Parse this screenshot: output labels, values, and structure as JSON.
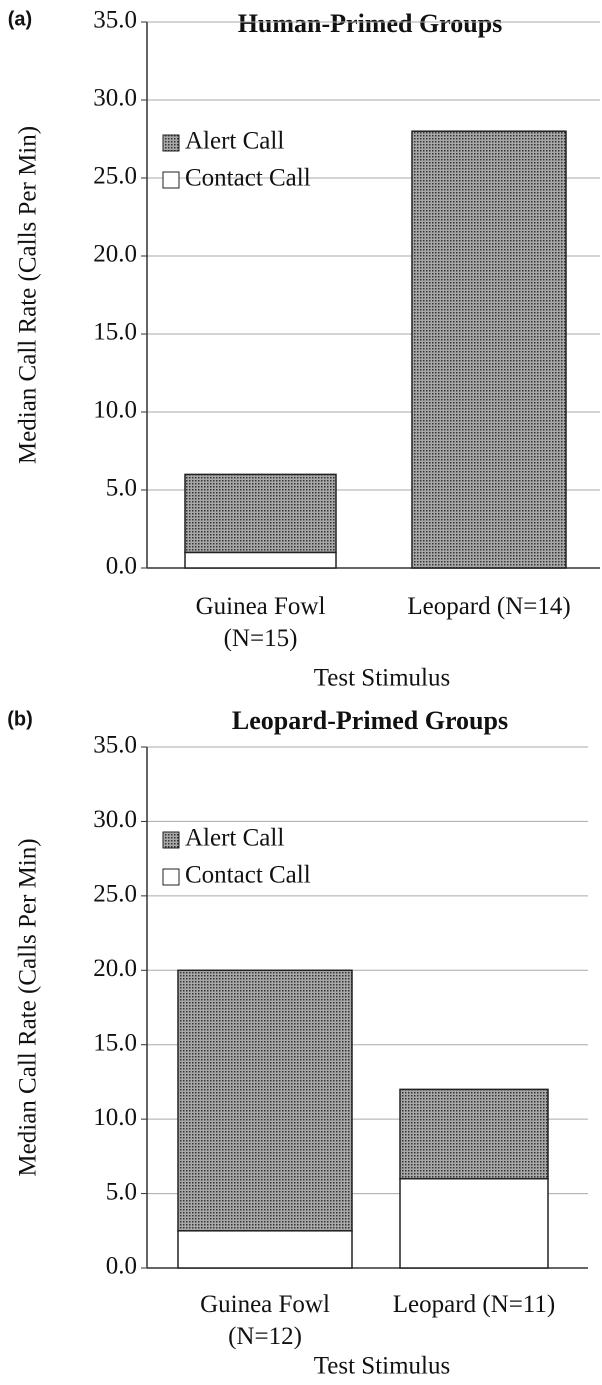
{
  "chart_data": [
    {
      "type": "stacked_bar",
      "panel": "(a)",
      "title": "Human-Primed Groups",
      "y_label": "Median Call Rate (Calls Per Min)",
      "x_label": "Test Stimulus",
      "categories": [
        [
          "Guinea Fowl",
          "(N=15)"
        ],
        [
          "Leopard (N=14)"
        ]
      ],
      "series": [
        {
          "name": "Contact Call",
          "color": "#ffffff",
          "values": [
            1.0,
            0
          ]
        },
        {
          "name": "Alert Call",
          "color": "#a8a8a8",
          "values": [
            5.0,
            28.0
          ]
        }
      ],
      "ylim": [
        0,
        35
      ],
      "yticks": [
        {
          "value": 0,
          "label": "0.0"
        },
        {
          "value": 5,
          "label": "5.0"
        },
        {
          "value": 10,
          "label": "10.0"
        },
        {
          "value": 15,
          "label": "15.0"
        },
        {
          "value": 20,
          "label": "20.0"
        },
        {
          "value": 25,
          "label": "25.0"
        },
        {
          "value": 30,
          "label": "30.0"
        },
        {
          "value": 35,
          "label": "35.0"
        }
      ],
      "grid": true,
      "legend": "upper left"
    },
    {
      "type": "stacked_bar",
      "panel": "(b)",
      "title": "Leopard-Primed Groups",
      "y_label": "Median Call Rate (Calls Per Min)",
      "x_label": "Test Stimulus",
      "categories": [
        [
          "Guinea Fowl",
          "(N=12)"
        ],
        [
          "Leopard (N=11)"
        ]
      ],
      "series": [
        {
          "name": "Contact Call",
          "color": "#ffffff",
          "values": [
            2.5,
            6.0
          ]
        },
        {
          "name": "Alert Call",
          "color": "#a8a8a8",
          "values": [
            17.5,
            6.0
          ]
        }
      ],
      "ylim": [
        0,
        35
      ],
      "yticks": [
        {
          "value": 0,
          "label": "0.0"
        },
        {
          "value": 5,
          "label": "5.0"
        },
        {
          "value": 10,
          "label": "10.0"
        },
        {
          "value": 15,
          "label": "15.0"
        },
        {
          "value": 20,
          "label": "20.0"
        },
        {
          "value": 25,
          "label": "25.0"
        },
        {
          "value": 30,
          "label": "30.0"
        },
        {
          "value": 35,
          "label": "35.0"
        }
      ],
      "grid": true,
      "legend": "upper left"
    }
  ]
}
